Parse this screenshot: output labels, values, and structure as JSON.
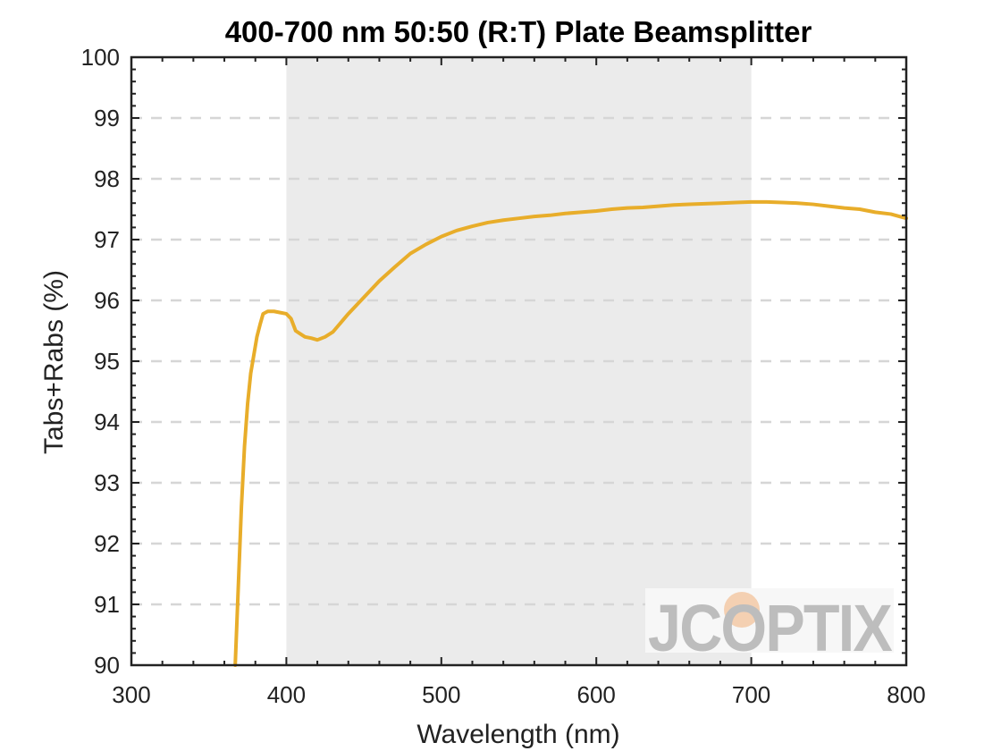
{
  "chart_data": {
    "type": "line",
    "title": "400-700 nm 50:50 (R:T) Plate Beamsplitter",
    "xlabel": "Wavelength (nm)",
    "ylabel": "Tabs+Rabs (%)",
    "xlim": [
      300,
      800
    ],
    "ylim": [
      90,
      100
    ],
    "xticks": [
      "300",
      "400",
      "500",
      "600",
      "700",
      "800"
    ],
    "yticks": [
      "90",
      "91",
      "92",
      "93",
      "94",
      "95",
      "96",
      "97",
      "98",
      "99",
      "100"
    ],
    "grid": "dashed horizontal",
    "highlight_band": [
      400,
      700
    ],
    "series": [
      {
        "name": "Tabs+Rabs",
        "color": "#e8ad2a",
        "x": [
          367,
          369,
          371,
          373,
          375,
          377,
          379,
          381,
          383,
          385,
          388,
          392,
          396,
          400,
          403,
          406,
          409,
          412,
          416,
          420,
          425,
          430,
          440,
          450,
          460,
          470,
          480,
          490,
          500,
          510,
          520,
          530,
          540,
          550,
          560,
          570,
          580,
          590,
          600,
          610,
          620,
          630,
          640,
          650,
          660,
          670,
          680,
          690,
          700,
          710,
          720,
          730,
          740,
          750,
          760,
          770,
          780,
          790,
          800
        ],
        "values": [
          90.0,
          91.3,
          92.6,
          93.6,
          94.3,
          94.8,
          95.1,
          95.4,
          95.6,
          95.78,
          95.82,
          95.82,
          95.8,
          95.78,
          95.7,
          95.5,
          95.45,
          95.4,
          95.38,
          95.35,
          95.4,
          95.48,
          95.78,
          96.05,
          96.32,
          96.55,
          96.77,
          96.92,
          97.05,
          97.15,
          97.22,
          97.28,
          97.32,
          97.35,
          97.38,
          97.4,
          97.43,
          97.45,
          97.47,
          97.5,
          97.52,
          97.53,
          97.55,
          97.57,
          97.58,
          97.59,
          97.6,
          97.61,
          97.62,
          97.62,
          97.61,
          97.6,
          97.58,
          97.55,
          97.52,
          97.5,
          97.45,
          97.42,
          97.35
        ]
      }
    ]
  },
  "watermark": {
    "text": "JCOPTIX",
    "color": "#bdbdbd",
    "accent_color": "#f3c9a6"
  }
}
